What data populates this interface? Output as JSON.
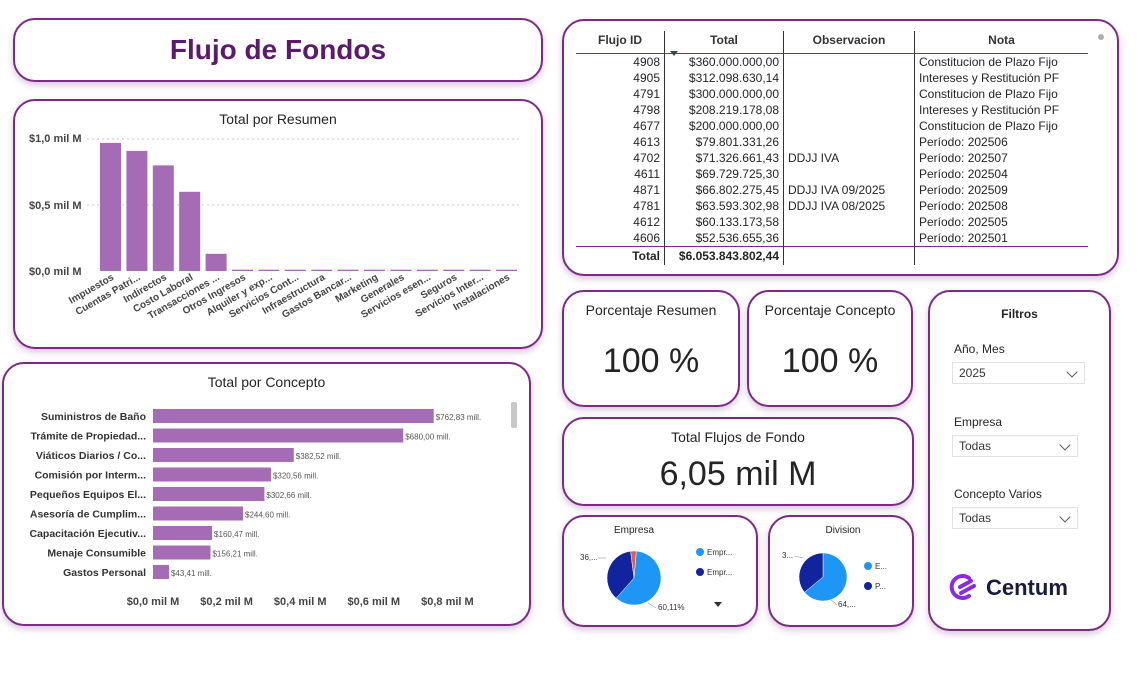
{
  "page_title": "Flujo de Fondos",
  "colors": {
    "bar": "#a66bb5",
    "accent": "#7b2b84",
    "pie_light": "#1e96f5",
    "pie_dark": "#12239e",
    "pie_red": "#e8594f"
  },
  "resumen_chart": {
    "title": "Total por Resumen",
    "y_ticks": [
      "$1,0 mil M",
      "$0,5 mil M",
      "$0,0 mil M"
    ],
    "chart_data": {
      "type": "bar",
      "title": "Total por Resumen",
      "categories": [
        "Impuestos",
        "Cuentas Patri...",
        "Indirectos",
        "Costo Laboral",
        "Transacciones ...",
        "Otros Ingresos",
        "Alquiler y exp...",
        "Servicios Cont...",
        "Infraestructura",
        "Gastos Bancar...",
        "Marketing",
        "Generales",
        "Servicios esen...",
        "Seguros",
        "Servicios Inter...",
        "Instalaciones"
      ],
      "values": [
        0.97,
        0.91,
        0.8,
        0.6,
        0.13,
        0.01,
        0.01,
        0.01,
        0.01,
        0.01,
        0.01,
        0.01,
        0.01,
        0.01,
        0.01,
        0.01
      ],
      "ylim": [
        0,
        1.0
      ],
      "ylabel": "",
      "xlabel": ""
    }
  },
  "concepto_chart": {
    "title": "Total por Concepto",
    "x_ticks": [
      "$0,0 mil M",
      "$0,2 mil M",
      "$0,4 mil M",
      "$0,6 mil M",
      "$0,8 mil M"
    ],
    "chart_data": {
      "type": "bar",
      "orientation": "horizontal",
      "title": "Total por Concepto",
      "categories": [
        "Suministros de Baño",
        "Trámite de Propiedad...",
        "Viáticos Diarios / Co...",
        "Comisión por Interm...",
        "Pequeños Equipos El...",
        "Asesoría de Cumplim...",
        "Capacitación Ejecutiv...",
        "Menaje Consumible",
        "Gastos Personal"
      ],
      "values": [
        762.83,
        680.0,
        382.52,
        320.56,
        302.66,
        244.6,
        160.47,
        156.21,
        43.41
      ],
      "data_labels": [
        "$762,83 mill.",
        "$680,00 mill.",
        "$382,52 mill.",
        "$320,56 mill.",
        "$302,66 mill.",
        "$244,60 mill.",
        "$160,47 mill.",
        "$156,21 mill.",
        "$43,41 mill."
      ],
      "xlim": [
        0,
        900
      ],
      "unit": "mill."
    }
  },
  "table": {
    "headers": [
      "Flujo ID",
      "Total",
      "Observacion",
      "Nota"
    ],
    "rows": [
      [
        "4908",
        "$360.000.000,00",
        "",
        "Constitucion de Plazo Fijo"
      ],
      [
        "4905",
        "$312.098.630,14",
        "",
        "Intereses y Restitución PF"
      ],
      [
        "4791",
        "$300.000.000,00",
        "",
        "Constitucion de Plazo Fijo"
      ],
      [
        "4798",
        "$208.219.178,08",
        "",
        "Intereses y Restitución PF"
      ],
      [
        "4677",
        "$200.000.000,00",
        "",
        "Constitucion de Plazo Fijo"
      ],
      [
        "4613",
        "$79.801.331,26",
        "",
        "Período: 202506"
      ],
      [
        "4702",
        "$71.326.661,43",
        "DDJJ IVA",
        "Período: 202507"
      ],
      [
        "4611",
        "$69.729.725,30",
        "",
        "Período: 202504"
      ],
      [
        "4871",
        "$66.802.275,45",
        "DDJJ IVA 09/2025",
        "Período: 202509"
      ],
      [
        "4781",
        "$63.593.302,98",
        "DDJJ IVA 08/2025",
        "Período: 202508"
      ],
      [
        "4612",
        "$60.133.173,58",
        "",
        "Período: 202505"
      ],
      [
        "4606",
        "$52.536.655,36",
        "",
        "Período: 202501"
      ]
    ],
    "total_label": "Total",
    "total_value": "$6.053.843.802,44"
  },
  "kpis": {
    "porcentaje_resumen": {
      "label": "Porcentaje Resumen",
      "value": "100 %"
    },
    "porcentaje_concepto": {
      "label": "Porcentaje Concepto",
      "value": "100 %"
    },
    "total_flujos": {
      "label": "Total Flujos de Fondo",
      "value": "6,05 mil M"
    }
  },
  "empresa_pie": {
    "title": "Empresa",
    "label_small": "36,...",
    "label_large": "60,11%",
    "legend": [
      "Empr...",
      "Empr..."
    ],
    "chart_data": {
      "type": "pie",
      "labels": [
        "Empr... (light)",
        "Empr... (dark)",
        "other"
      ],
      "values": [
        60.11,
        36.5,
        3.39
      ]
    }
  },
  "division_pie": {
    "title": "Division",
    "label_small": "3...",
    "label_large": "64,...",
    "legend": [
      "E...",
      "P..."
    ],
    "chart_data": {
      "type": "pie",
      "labels": [
        "E...",
        "P..."
      ],
      "values": [
        64,
        36
      ]
    }
  },
  "filters": {
    "title": "Filtros",
    "anio_mes": {
      "label": "Año, Mes",
      "value": "2025"
    },
    "empresa": {
      "label": "Empresa",
      "value": "Todas"
    },
    "concepto": {
      "label": "Concepto Varios",
      "value": "Todas"
    }
  },
  "brand": {
    "name": "Centum"
  }
}
